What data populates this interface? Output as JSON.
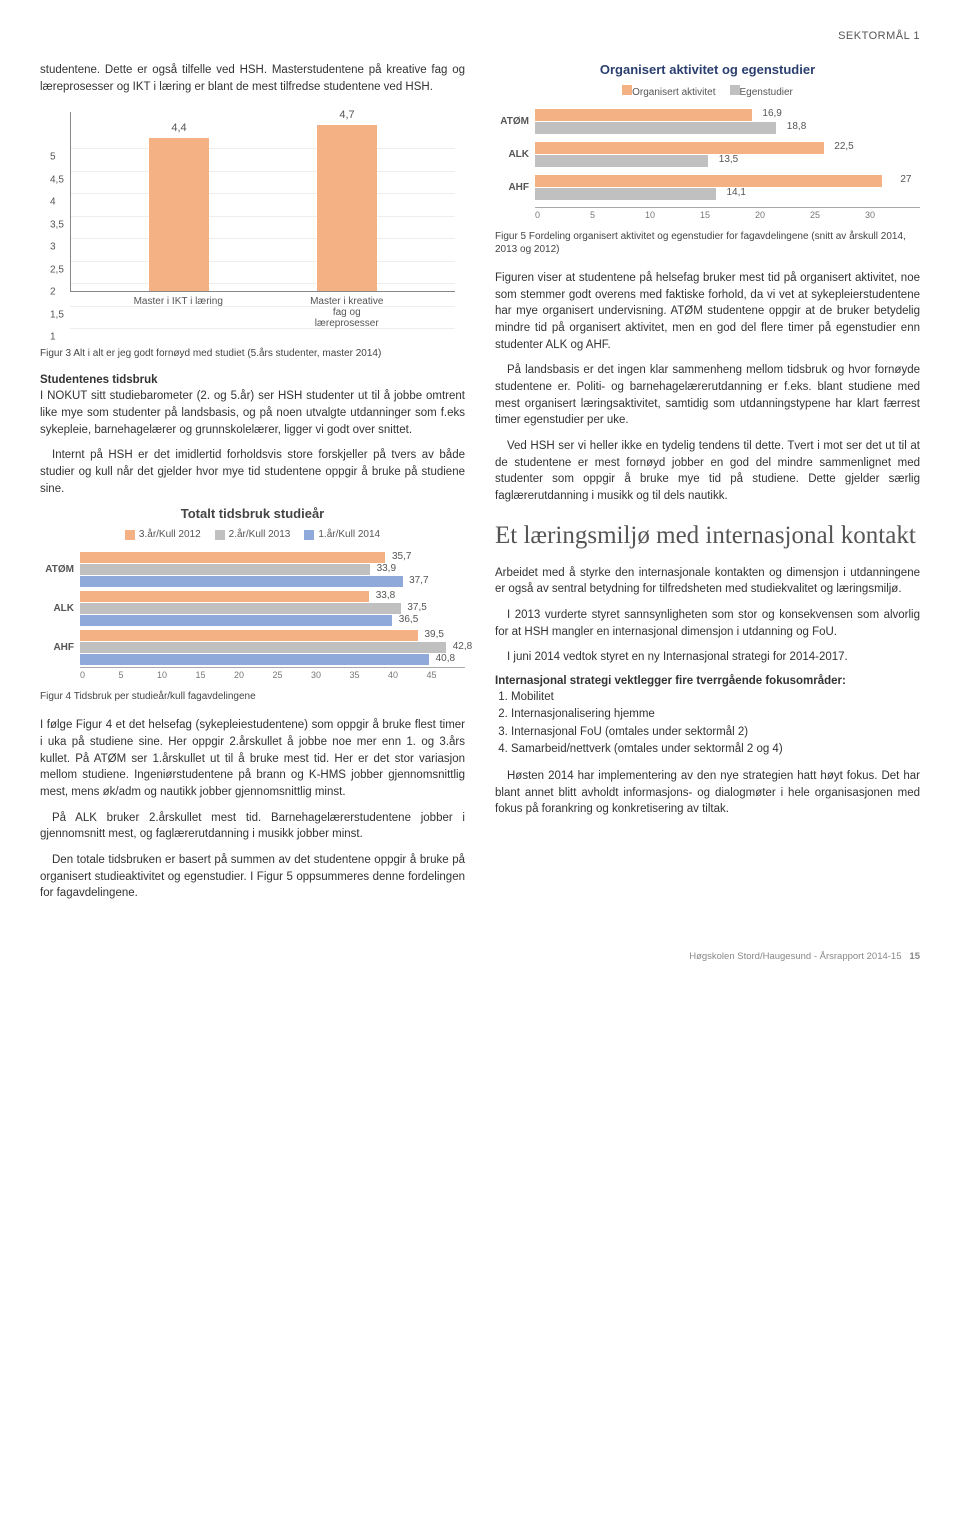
{
  "header": {
    "label": "SEKTORMÅL 1"
  },
  "leftCol": {
    "introPara": "studentene. Dette er også tilfelle ved HSH. Masterstudentene på kreative fag og læreprosesser og IKT i læring er blant de mest tilfredse studentene ved HSH.",
    "chart1": {
      "categories": [
        "Master i IKT i læring",
        "Master i kreative fag og læreprosesser"
      ],
      "values": [
        4.4,
        4.7
      ],
      "ylim": [
        1,
        5
      ],
      "yticks": [
        1,
        1.5,
        2,
        2.5,
        3,
        3.5,
        4,
        4.5,
        5
      ],
      "bar_color": "#f4b183",
      "background": "#ffffff"
    },
    "caption1": "Figur 3 Alt i alt er jeg godt fornøyd med studiet (5.års studenter, master 2014)",
    "sec1_title": "Studentenes tidsbruk",
    "sec1_p1": "I NOKUT sitt studiebarometer (2. og 5.år) ser HSH studenter ut til å jobbe omtrent like mye som studenter på landsbasis, og på noen utvalgte utdanninger som f.eks sykepleie, barnehagelærer og grunnskolelærer, ligger vi godt over snittet.",
    "sec1_p2": "Internt på HSH er det imidlertid forholdsvis store forskjeller på tvers av både studier og kull når det gjelder hvor mye tid studentene oppgir å bruke på studiene sine.",
    "chart2": {
      "title": "Totalt tidsbruk studieår",
      "legend": [
        {
          "label": "3.år/Kull 2012",
          "color": "#f4b183"
        },
        {
          "label": "2.år/Kull 2013",
          "color": "#c0c0c0"
        },
        {
          "label": "1.år/Kull 2014",
          "color": "#8fa9db"
        }
      ],
      "categories": [
        "ATØM",
        "ALK",
        "AHF"
      ],
      "series": [
        [
          35.7,
          33.9,
          37.7
        ],
        [
          33.8,
          37.5,
          36.5
        ],
        [
          39.5,
          42.8,
          40.8
        ]
      ],
      "xmax": 45
    },
    "caption2": "Figur 4 Tidsbruk per studieår/kull fagavdelingene",
    "p3": "I følge Figur 4 et det helsefag (sykepleiestudentene) som oppgir å bruke flest timer i uka på studiene sine. Her oppgir 2.årskullet å jobbe noe mer enn 1. og 3.års kullet. På ATØM ser 1.årskullet ut til å bruke mest tid. Her er det stor variasjon mellom studiene. Ingeniørstudentene på brann og K-HMS jobber gjennomsnittlig mest, mens øk/adm og nautikk jobber gjennomsnittlig minst.",
    "p4": "På ALK bruker 2.årskullet mest tid. Barnehagelærerstudentene jobber i gjennomsnitt mest, og faglærerutdanning i musikk jobber minst.",
    "p5": "Den totale tidsbruken er basert på summen av det studentene oppgir å bruke på organisert studieaktivitet og egenstudier. I Figur 5 oppsummeres denne fordelingen for fagavdelingene."
  },
  "rightCol": {
    "chart3": {
      "title": "Organisert aktivitet og egenstudier",
      "legend": [
        {
          "label": "Organisert aktivitet",
          "color": "#f4b183"
        },
        {
          "label": "Egenstudier",
          "color": "#c0c0c0"
        }
      ],
      "categories": [
        "ATØM",
        "ALK",
        "AHF"
      ],
      "series": [
        [
          16.9,
          18.8
        ],
        [
          22.5,
          13.5
        ],
        [
          27,
          14.1
        ]
      ],
      "xmax": 30
    },
    "caption3": "Figur 5 Fordeling organisert aktivitet og egenstudier for fagavdelingene (snitt av årskull 2014, 2013 og 2012)",
    "p1": "Figuren viser at studentene på helsefag bruker mest tid på organisert aktivitet, noe som stemmer godt overens med faktiske forhold, da vi vet at sykepleierstudentene har mye organisert undervisning. ATØM studentene oppgir at de bruker betydelig mindre tid på organisert aktivitet, men en god del flere timer på egenstudier enn studenter ALK og AHF.",
    "p2": "På landsbasis er det ingen klar sammenheng mellom tidsbruk og hvor fornøyde studentene er. Politi- og barnehagelærerutdanning er f.eks. blant studiene med mest organisert læringsaktivitet, samtidig som utdanningstypene har klart færrest timer egenstudier per uke.",
    "p3": "Ved HSH ser vi heller ikke en tydelig tendens til dette. Tvert i mot ser det ut til at de studentene er mest fornøyd jobber en god del mindre sammenlignet med studenter som oppgir å bruke mye tid på studiene. Dette gjelder særlig faglærerutdanning i musikk og til dels nautikk.",
    "h2": "Et læringsmiljø med internasjonal kontakt",
    "p4": "Arbeidet med å styrke den internasjonale kontakten og dimensjon i utdanningene er også av sentral betydning for tilfredsheten med studiekvalitet og læringsmiljø.",
    "p5": "I 2013 vurderte styret sannsynligheten som stor og konsekvensen som alvorlig for at HSH mangler en internasjonal dimensjon i utdanning og FoU.",
    "p6": "I juni 2014 vedtok styret en ny Internasjonal strategi for 2014-2017.",
    "list_title": "Internasjonal strategi vektlegger fire tverrgående fokusområder:",
    "list": [
      "Mobilitet",
      "Internasjonalisering hjemme",
      "Internasjonal FoU (omtales under sektormål 2)",
      "Samarbeid/nettverk (omtales under sektormål 2 og 4)"
    ],
    "p7": "Høsten 2014 har implementering av den nye strategien hatt høyt fokus. Det har blant annet blitt avholdt informasjons- og dialogmøter i hele organisasjonen med fokus på forankring og konkretisering av tiltak."
  },
  "footer": {
    "text": "Høgskolen Stord/Haugesund - Årsrapport 2014-15",
    "page": "15"
  }
}
